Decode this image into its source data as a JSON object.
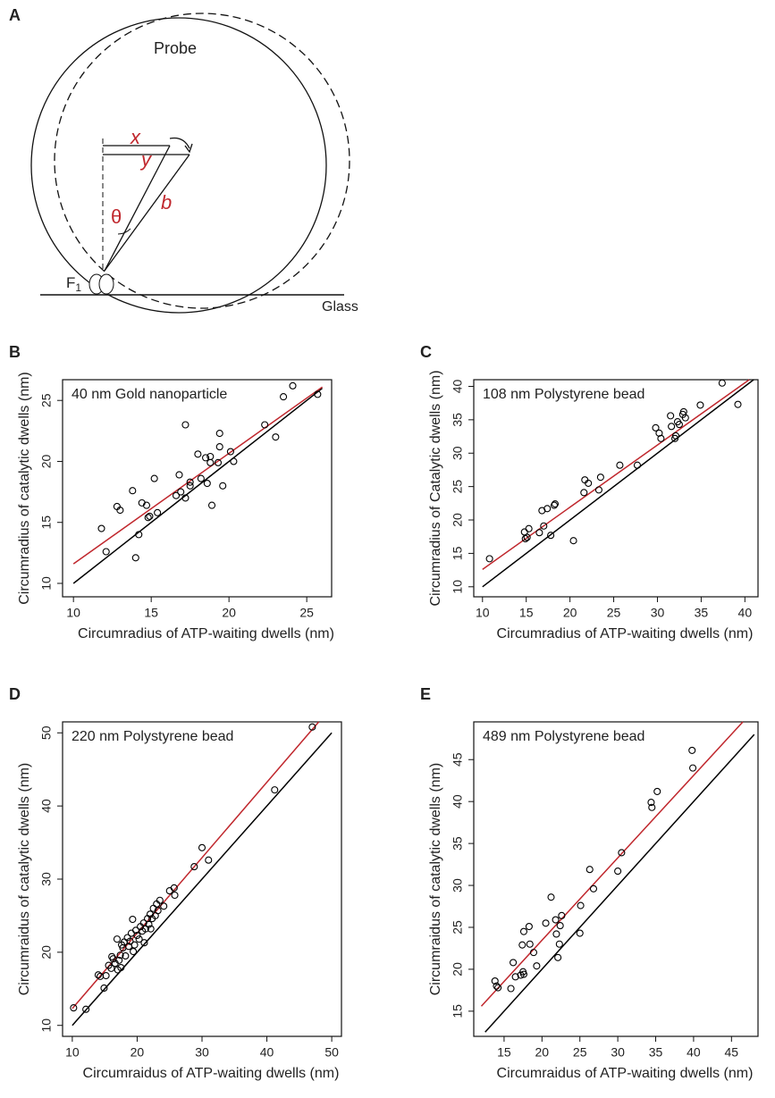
{
  "diagram": {
    "label": "A",
    "probe": "Probe",
    "x": "x",
    "y": "y",
    "b": "b",
    "theta": "θ",
    "f": "F",
    "f_sub": "1",
    "glass": "Glass"
  },
  "chart_data": [
    {
      "type": "scatter",
      "panel_label": "B",
      "annotation": "40 nm Gold nanoparticle",
      "xlabel": "Circumradius of ATP-waiting dwells (nm)",
      "ylabel": "Circumradius of catalytic dwells (nm)",
      "xlim": [
        9.3,
        26.6
      ],
      "ylim": [
        8.9,
        26.7
      ],
      "xticks": [
        10,
        15,
        20,
        25
      ],
      "yticks": [
        10,
        15,
        20,
        25
      ],
      "marker_color": "#000000",
      "x": [
        11.8,
        12.1,
        12.8,
        13.0,
        13.8,
        14.0,
        14.2,
        14.4,
        14.7,
        14.8,
        14.9,
        15.2,
        15.4,
        16.6,
        16.9,
        16.8,
        17.2,
        17.2,
        17.5,
        17.5,
        18.0,
        18.2,
        18.5,
        18.6,
        18.8,
        18.8,
        18.9,
        19.3,
        19.4,
        19.4,
        19.6,
        20.1,
        20.3,
        22.3,
        23.0,
        23.5,
        24.1,
        25.7
      ],
      "values": [
        14.5,
        12.6,
        16.3,
        16.0,
        17.6,
        12.1,
        14.0,
        16.6,
        16.4,
        15.4,
        15.5,
        18.6,
        15.8,
        17.2,
        17.5,
        18.9,
        17.0,
        23.0,
        18.0,
        18.3,
        20.6,
        18.6,
        20.3,
        18.2,
        20.4,
        19.9,
        16.4,
        19.9,
        21.2,
        22.3,
        18.0,
        20.8,
        20.0,
        23.0,
        22.0,
        25.3,
        26.2,
        25.5
      ],
      "lines": [
        {
          "color": "#000000",
          "x": [
            10,
            26
          ],
          "values": [
            10,
            26
          ]
        },
        {
          "color": "#c0272d",
          "x": [
            10,
            26
          ],
          "values": [
            11.6,
            26.1
          ]
        }
      ]
    },
    {
      "type": "scatter",
      "panel_label": "C",
      "annotation": "108 nm Polystyrene bead",
      "xlabel": "Circumradius of ATP-waiting dwells (nm)",
      "ylabel": "Circumradius of Catalytic dwells (nm)",
      "xlim": [
        9,
        41.5
      ],
      "ylim": [
        8.5,
        41
      ],
      "xticks": [
        10,
        15,
        20,
        25,
        30,
        35,
        40
      ],
      "yticks": [
        10,
        15,
        20,
        25,
        30,
        35,
        40
      ],
      "marker_color": "#000000",
      "x": [
        10.8,
        14.8,
        14.9,
        15.1,
        15.3,
        16.5,
        16.8,
        17.0,
        17.4,
        17.8,
        18.2,
        18.3,
        20.4,
        21.6,
        21.7,
        22.1,
        23.3,
        23.5,
        25.7,
        27.7,
        29.8,
        30.2,
        30.4,
        31.5,
        31.6,
        32.0,
        32.1,
        32.3,
        32.5,
        32.9,
        33.0,
        33.2,
        34.9,
        37.4,
        39.2
      ],
      "values": [
        14.2,
        18.2,
        17.2,
        17.4,
        18.7,
        18.1,
        21.4,
        19.1,
        21.7,
        17.7,
        22.2,
        22.4,
        16.9,
        24.1,
        26.0,
        25.5,
        24.5,
        26.4,
        28.2,
        28.2,
        33.8,
        33.0,
        32.2,
        35.6,
        34.0,
        32.2,
        32.6,
        34.7,
        34.3,
        35.8,
        36.2,
        35.3,
        37.2,
        40.5,
        37.3
      ],
      "lines": [
        {
          "color": "#000000",
          "x": [
            10,
            41
          ],
          "values": [
            10,
            41
          ]
        },
        {
          "color": "#c0272d",
          "x": [
            10,
            40.5
          ],
          "values": [
            12.6,
            41
          ]
        }
      ]
    },
    {
      "type": "scatter",
      "panel_label": "D",
      "annotation": "220 nm Polystyrene bead",
      "xlabel": "Circumraidus of ATP-waiting dwells (nm)",
      "ylabel": "Circumraidus of catalytic dwells (nm)",
      "xlim": [
        8.5,
        51.5
      ],
      "ylim": [
        8.5,
        51.5
      ],
      "xticks": [
        10,
        20,
        30,
        40,
        50
      ],
      "yticks": [
        10,
        20,
        30,
        40,
        50
      ],
      "marker_color": "#000000",
      "x": [
        10.2,
        12.1,
        14.0,
        14.3,
        14.9,
        15.2,
        15.6,
        16.0,
        16.3,
        16.6,
        16.9,
        17.0,
        17.2,
        17.4,
        17.6,
        17.8,
        18.0,
        18.2,
        18.5,
        18.7,
        18.9,
        19.1,
        19.3,
        19.4,
        19.6,
        19.8,
        20.0,
        20.3,
        20.5,
        20.8,
        21.0,
        21.3,
        21.6,
        21.8,
        22.0,
        22.3,
        22.5,
        22.8,
        23.0,
        23.2,
        23.5,
        24.1,
        25.0,
        25.7,
        25.8,
        28.8,
        30.0,
        31.0,
        41.2,
        47.0,
        16.1,
        17.5,
        21.1,
        22.1
      ],
      "values": [
        12.4,
        12.2,
        16.9,
        16.7,
        15.1,
        16.8,
        18.2,
        17.8,
        19.1,
        18.5,
        21.8,
        17.6,
        18.9,
        19.6,
        21.0,
        20.6,
        21.4,
        19.5,
        22.0,
        20.8,
        21.5,
        22.6,
        24.5,
        20.1,
        21.0,
        23.0,
        22.3,
        21.8,
        23.5,
        22.9,
        24.0,
        23.2,
        24.6,
        23.8,
        25.2,
        24.6,
        26.0,
        25.0,
        26.6,
        25.7,
        27.1,
        26.3,
        28.4,
        28.8,
        27.8,
        31.7,
        34.3,
        32.6,
        42.2,
        50.8,
        19.4,
        17.9,
        21.3,
        23.2
      ],
      "lines": [
        {
          "color": "#000000",
          "x": [
            10,
            50
          ],
          "values": [
            10,
            50
          ]
        },
        {
          "color": "#c0272d",
          "x": [
            10,
            48
          ],
          "values": [
            12.3,
            51.5
          ]
        }
      ]
    },
    {
      "type": "scatter",
      "panel_label": "E",
      "annotation": "489 nm Polystyrene bead",
      "xlabel": "Circumraidus of ATP-waiting dwells (nm)",
      "ylabel": "Circumraidus of catalytic dwells (nm)",
      "xlim": [
        11,
        48.5
      ],
      "ylim": [
        12,
        49.5
      ],
      "xticks": [
        15,
        20,
        25,
        30,
        35,
        40,
        45
      ],
      "yticks": [
        15,
        20,
        25,
        30,
        35,
        40,
        45
      ],
      "marker_color": "#000000",
      "x": [
        13.8,
        14.0,
        14.2,
        15.9,
        16.2,
        16.5,
        17.2,
        17.4,
        17.5,
        17.6,
        17.6,
        18.3,
        18.4,
        18.9,
        19.3,
        20.5,
        21.2,
        21.8,
        21.9,
        22.1,
        22.3,
        22.4,
        22.6,
        25.0,
        25.1,
        26.3,
        26.8,
        30.0,
        30.5,
        34.4,
        34.5,
        35.2,
        39.8,
        39.9
      ],
      "values": [
        18.6,
        18.0,
        17.8,
        17.7,
        20.8,
        19.1,
        19.3,
        22.9,
        19.7,
        19.4,
        24.5,
        25.1,
        23.0,
        22.0,
        20.4,
        25.5,
        28.6,
        25.9,
        24.2,
        21.4,
        23.0,
        25.2,
        26.4,
        24.3,
        27.6,
        31.9,
        29.6,
        31.7,
        33.9,
        39.9,
        39.3,
        41.2,
        46.1,
        44.0
      ],
      "lines": [
        {
          "color": "#000000",
          "x": [
            12.5,
            48
          ],
          "values": [
            12.5,
            48
          ]
        },
        {
          "color": "#c0272d",
          "x": [
            12,
            46.5
          ],
          "values": [
            15.6,
            49.5
          ]
        }
      ]
    }
  ]
}
